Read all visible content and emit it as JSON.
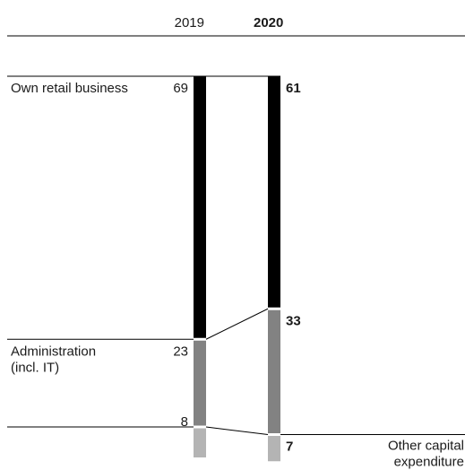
{
  "chart_data": {
    "type": "bar",
    "subtype": "stacked-100",
    "years": [
      "2019",
      "2020"
    ],
    "highlight_year": "2020",
    "categories": [
      {
        "name": "Own retail business",
        "lines": [
          "Own retail business"
        ],
        "values": [
          69,
          61
        ],
        "color": "#000000"
      },
      {
        "name": "Administration (incl. IT)",
        "lines": [
          "Administration",
          "(incl. IT)"
        ],
        "values": [
          23,
          33
        ],
        "color": "#828282"
      },
      {
        "name": "Other capital expenditure",
        "lines": [
          "Other capital",
          "expenditure"
        ],
        "values": [
          8,
          7
        ],
        "color": "#b4b4b4"
      }
    ],
    "value_labels": [
      [
        "69",
        "61"
      ],
      [
        "23",
        "33"
      ],
      [
        "8",
        "7"
      ]
    ],
    "unit": "%"
  }
}
